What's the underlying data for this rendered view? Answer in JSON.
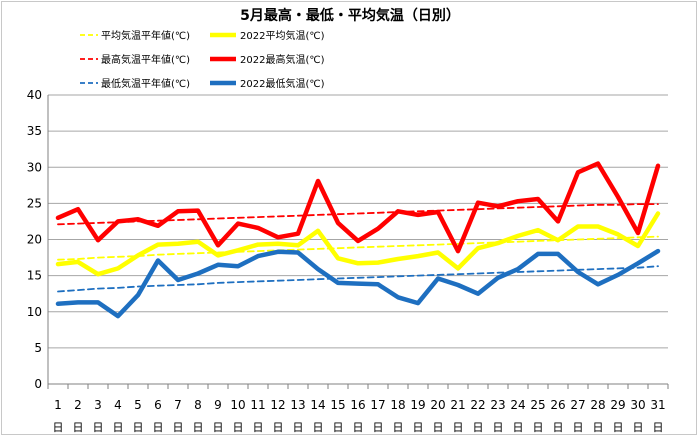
{
  "chart_data": {
    "type": "line",
    "title": "5月最高・最低・平均気温（日別）",
    "xlabel": "",
    "ylabel": "",
    "ylim": [
      0,
      40
    ],
    "yticks": [
      0,
      5,
      10,
      15,
      20,
      25,
      30,
      35,
      40
    ],
    "x": [
      1,
      2,
      3,
      4,
      5,
      6,
      7,
      8,
      9,
      10,
      11,
      12,
      13,
      14,
      15,
      16,
      17,
      18,
      19,
      20,
      21,
      22,
      23,
      24,
      25,
      26,
      27,
      28,
      29,
      30,
      31
    ],
    "day_suffix": "日",
    "grid": "horizontal",
    "legend_position": "top",
    "series": [
      {
        "name": "平均気温平年値(℃)",
        "style": "dashed",
        "color": "#ffff00",
        "values": [
          17.2,
          17.3,
          17.5,
          17.6,
          17.7,
          17.9,
          18.0,
          18.1,
          18.2,
          18.3,
          18.4,
          18.5,
          18.6,
          18.7,
          18.8,
          18.9,
          19.0,
          19.1,
          19.2,
          19.3,
          19.4,
          19.5,
          19.6,
          19.7,
          19.8,
          19.9,
          20.0,
          20.1,
          20.2,
          20.3,
          20.4
        ]
      },
      {
        "name": "2022平均気温(℃)",
        "style": "solid",
        "color": "#ffff00",
        "values": [
          16.6,
          16.9,
          15.2,
          16.0,
          17.8,
          19.3,
          19.4,
          19.7,
          17.8,
          18.5,
          19.3,
          19.4,
          19.2,
          21.2,
          17.4,
          16.7,
          16.8,
          17.3,
          17.7,
          18.2,
          16.0,
          18.8,
          19.5,
          20.5,
          21.3,
          19.9,
          21.8,
          21.8,
          20.7,
          19.1,
          23.6
        ]
      },
      {
        "name": "最高気温平年値(℃)",
        "style": "dashed",
        "color": "#ff0000",
        "values": [
          22.1,
          22.2,
          22.3,
          22.4,
          22.5,
          22.6,
          22.7,
          22.8,
          22.9,
          23.0,
          23.1,
          23.2,
          23.3,
          23.4,
          23.5,
          23.6,
          23.7,
          23.8,
          23.9,
          24.0,
          24.1,
          24.2,
          24.3,
          24.4,
          24.5,
          24.6,
          24.7,
          24.8,
          24.8,
          24.9,
          24.9
        ]
      },
      {
        "name": "2022最高気温(℃)",
        "style": "solid",
        "color": "#ff0000",
        "values": [
          23.0,
          24.2,
          19.9,
          22.5,
          22.8,
          21.9,
          23.9,
          24.0,
          19.2,
          22.2,
          21.6,
          20.3,
          20.8,
          28.1,
          22.3,
          19.8,
          21.5,
          23.9,
          23.4,
          23.8,
          18.4,
          25.1,
          24.6,
          25.3,
          25.6,
          22.5,
          29.3,
          30.5,
          25.9,
          20.9,
          30.2
        ]
      },
      {
        "name": "最低気温平年値(℃)",
        "style": "dashed",
        "color": "#1e6fc0",
        "values": [
          12.8,
          13.0,
          13.2,
          13.3,
          13.5,
          13.6,
          13.7,
          13.8,
          14.0,
          14.1,
          14.2,
          14.3,
          14.4,
          14.5,
          14.6,
          14.7,
          14.8,
          14.9,
          15.0,
          15.1,
          15.2,
          15.3,
          15.4,
          15.5,
          15.6,
          15.7,
          15.8,
          15.9,
          16.0,
          16.1,
          16.3
        ]
      },
      {
        "name": "2022最低気温(℃)",
        "style": "solid",
        "color": "#1e6fc0",
        "values": [
          11.1,
          11.3,
          11.3,
          9.4,
          12.3,
          17.1,
          14.4,
          15.3,
          16.5,
          16.3,
          17.7,
          18.3,
          18.2,
          15.9,
          14.0,
          13.9,
          13.8,
          12.0,
          11.2,
          14.6,
          13.7,
          12.5,
          14.7,
          15.9,
          18.0,
          18.0,
          15.5,
          13.8,
          15.1,
          16.7,
          18.4
        ]
      }
    ]
  }
}
